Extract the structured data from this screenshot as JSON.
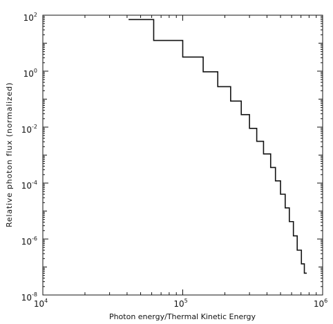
{
  "chart_data": {
    "type": "line",
    "step": true,
    "xlabel": "Photon energy/Thermal Kinetic Energy",
    "ylabel": "Relative photon flux (normalized)",
    "xscale": "log",
    "yscale": "log",
    "xlim": [
      10000,
      1000000
    ],
    "ylim": [
      1e-08,
      100
    ],
    "grid": false,
    "x_ticks": [
      {
        "base": "10",
        "exp": "4"
      },
      {
        "base": "10",
        "exp": "5"
      },
      {
        "base": "10",
        "exp": "6"
      }
    ],
    "y_ticks": [
      {
        "base": "10",
        "exp": "2"
      },
      {
        "base": "10",
        "exp": "0"
      },
      {
        "base": "10",
        "exp": "-2"
      },
      {
        "base": "10",
        "exp": "-4"
      },
      {
        "base": "10",
        "exp": "-6"
      },
      {
        "base": "10",
        "exp": "-8"
      }
    ],
    "series": [
      {
        "steps": [
          {
            "x0": 41000,
            "x1": 62000,
            "y": 70
          },
          {
            "x0": 62000,
            "x1": 100000,
            "y": 12.5
          },
          {
            "x0": 100000,
            "x1": 140000,
            "y": 3.2
          },
          {
            "x0": 140000,
            "x1": 178000,
            "y": 0.95
          },
          {
            "x0": 178000,
            "x1": 220000,
            "y": 0.28
          },
          {
            "x0": 220000,
            "x1": 262000,
            "y": 0.085
          },
          {
            "x0": 262000,
            "x1": 300000,
            "y": 0.028
          },
          {
            "x0": 300000,
            "x1": 338000,
            "y": 0.009
          },
          {
            "x0": 338000,
            "x1": 378000,
            "y": 0.0031
          },
          {
            "x0": 378000,
            "x1": 425000,
            "y": 0.0011
          },
          {
            "x0": 425000,
            "x1": 460000,
            "y": 0.00036
          },
          {
            "x0": 460000,
            "x1": 500000,
            "y": 0.00012
          },
          {
            "x0": 500000,
            "x1": 540000,
            "y": 4e-05
          },
          {
            "x0": 540000,
            "x1": 578000,
            "y": 1.3e-05
          },
          {
            "x0": 578000,
            "x1": 618000,
            "y": 4.2e-06
          },
          {
            "x0": 618000,
            "x1": 658000,
            "y": 1.3e-06
          },
          {
            "x0": 658000,
            "x1": 705000,
            "y": 4e-07
          },
          {
            "x0": 705000,
            "x1": 740000,
            "y": 1.3e-07
          },
          {
            "x0": 740000,
            "x1": 770000,
            "y": 6e-08
          }
        ]
      }
    ]
  }
}
